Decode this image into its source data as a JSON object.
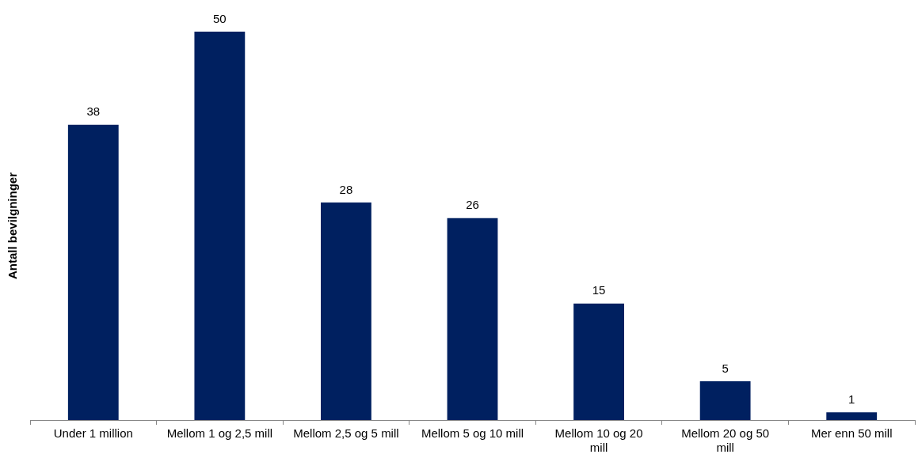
{
  "chart_data": {
    "type": "bar",
    "ylabel": "Antall bevilgninger",
    "categories": [
      "Under 1 million",
      "Mellom 1 og 2,5 mill",
      "Mellom 2,5 og 5 mill",
      "Mellom 5 og 10 mill",
      "Mellom 10 og 20 mill",
      "Mellom 20 og 50 mill",
      "Mer enn 50 mill"
    ],
    "values": [
      38,
      50,
      28,
      26,
      15,
      5,
      1
    ],
    "color": "#002060",
    "data_labels": true,
    "grid": false,
    "legend": false
  }
}
